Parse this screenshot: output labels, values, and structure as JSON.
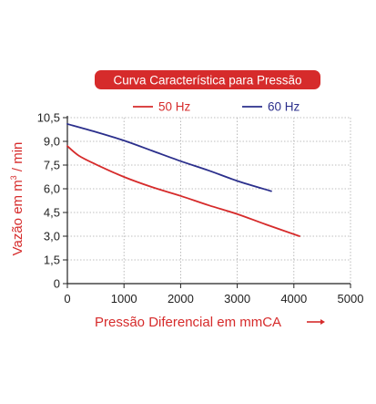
{
  "chart_data": {
    "type": "line",
    "title": "Curva Característica para Pressão",
    "xlabel": "Pressão Diferencial em mmCA",
    "ylabel": "Vazão em m³ / min",
    "ylabel_parts": {
      "prefix": "Vazão em m",
      "sup": "3",
      "suffix": " / min"
    },
    "xlim": [
      0,
      5000
    ],
    "ylim": [
      0,
      10.5
    ],
    "x_ticks": [
      0,
      1000,
      2000,
      3000,
      4000,
      5000
    ],
    "x_tick_labels": [
      "0",
      "1000",
      "2000",
      "3000",
      "4000",
      "5000"
    ],
    "y_ticks": [
      0,
      1.5,
      3.0,
      4.5,
      6.0,
      7.5,
      9.0,
      10.5
    ],
    "y_tick_labels": [
      "0",
      "1,5",
      "3,0",
      "4,5",
      "6,0",
      "7,5",
      "9,0",
      "10,5"
    ],
    "grid": true,
    "legend_position": "top",
    "series": [
      {
        "name": "50 Hz",
        "color": "#d62b2b",
        "x": [
          0,
          200,
          500,
          1000,
          1500,
          2000,
          2500,
          3000,
          3500,
          4100
        ],
        "y": [
          8.7,
          8.1,
          7.55,
          6.75,
          6.1,
          5.55,
          4.95,
          4.4,
          3.75,
          3.0
        ]
      },
      {
        "name": "60 Hz",
        "color": "#2b2f8c",
        "x": [
          0,
          500,
          1000,
          1500,
          2000,
          2500,
          3000,
          3600
        ],
        "y": [
          10.1,
          9.6,
          9.05,
          8.4,
          7.75,
          7.15,
          6.5,
          5.85
        ]
      }
    ]
  },
  "colors": {
    "title_bg": "#d62b2b",
    "title_text": "#ffffff",
    "axis_label": "#d62b2b",
    "tick_text": "#222222",
    "grid": "#aaaaaa",
    "axis": "#222222"
  }
}
